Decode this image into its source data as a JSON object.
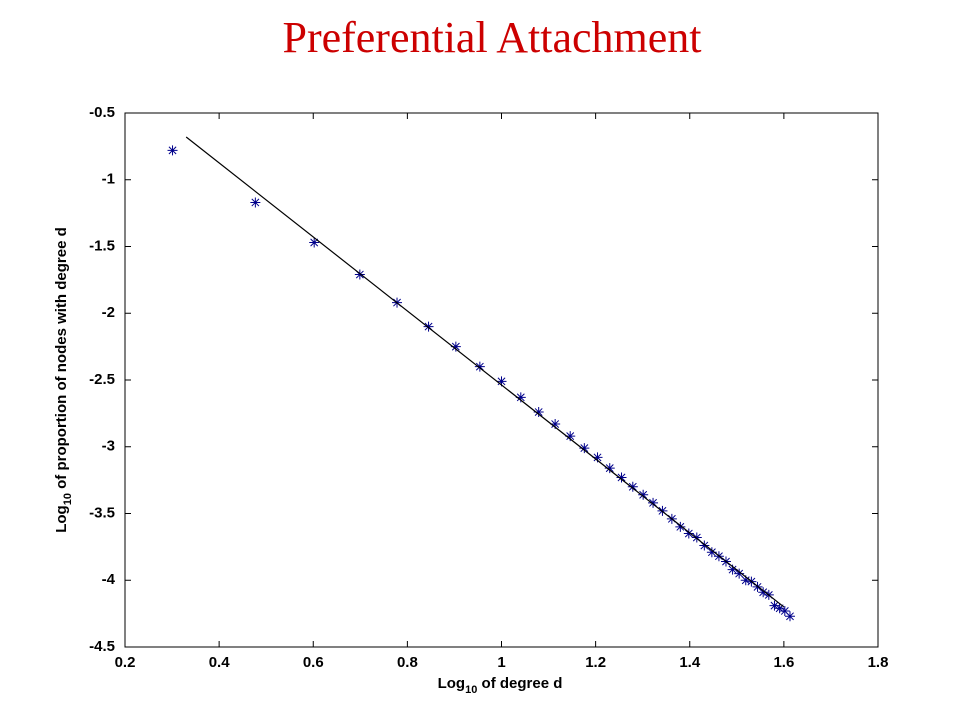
{
  "chart_data": {
    "type": "scatter",
    "title": "Preferential Attachment",
    "x_label": [
      "Log",
      "10",
      " of degree d"
    ],
    "y_label": [
      "Log",
      "10",
      " of proportion of nodes with degree d"
    ],
    "xlim": [
      0.2,
      1.8
    ],
    "ylim": [
      -4.5,
      -0.5
    ],
    "xticks": [
      0.2,
      0.4,
      0.6,
      0.8,
      1,
      1.2,
      1.4,
      1.6,
      1.8
    ],
    "yticks": [
      -4.5,
      -4,
      -3.5,
      -3,
      -2.5,
      -2,
      -1.5,
      -1,
      -0.5
    ],
    "series": [
      {
        "style": "marker",
        "color": "#00008b",
        "x": [
          0.301,
          0.477,
          0.602,
          0.699,
          0.778,
          0.845,
          0.903,
          0.954,
          1.0,
          1.041,
          1.079,
          1.114,
          1.146,
          1.176,
          1.204,
          1.23,
          1.255,
          1.279,
          1.301,
          1.322,
          1.342,
          1.362,
          1.38,
          1.398,
          1.415,
          1.431,
          1.447,
          1.462,
          1.477,
          1.491,
          1.505,
          1.519,
          1.531,
          1.544,
          1.556,
          1.568,
          1.58,
          1.591,
          1.602,
          1.613
        ],
        "values": [
          -0.78,
          -1.17,
          -1.47,
          -1.71,
          -1.92,
          -2.1,
          -2.25,
          -2.4,
          -2.51,
          -2.63,
          -2.74,
          -2.83,
          -2.92,
          -3.01,
          -3.08,
          -3.16,
          -3.23,
          -3.3,
          -3.36,
          -3.42,
          -3.48,
          -3.54,
          -3.6,
          -3.65,
          -3.68,
          -3.74,
          -3.79,
          -3.82,
          -3.86,
          -3.92,
          -3.95,
          -4.0,
          -4.01,
          -4.05,
          -4.09,
          -4.11,
          -4.19,
          -4.21,
          -4.23,
          -4.27
        ]
      },
      {
        "style": "line",
        "color": "#000000",
        "x": [
          0.33,
          1.6
        ],
        "values": [
          -0.68,
          -4.2
        ]
      }
    ]
  }
}
